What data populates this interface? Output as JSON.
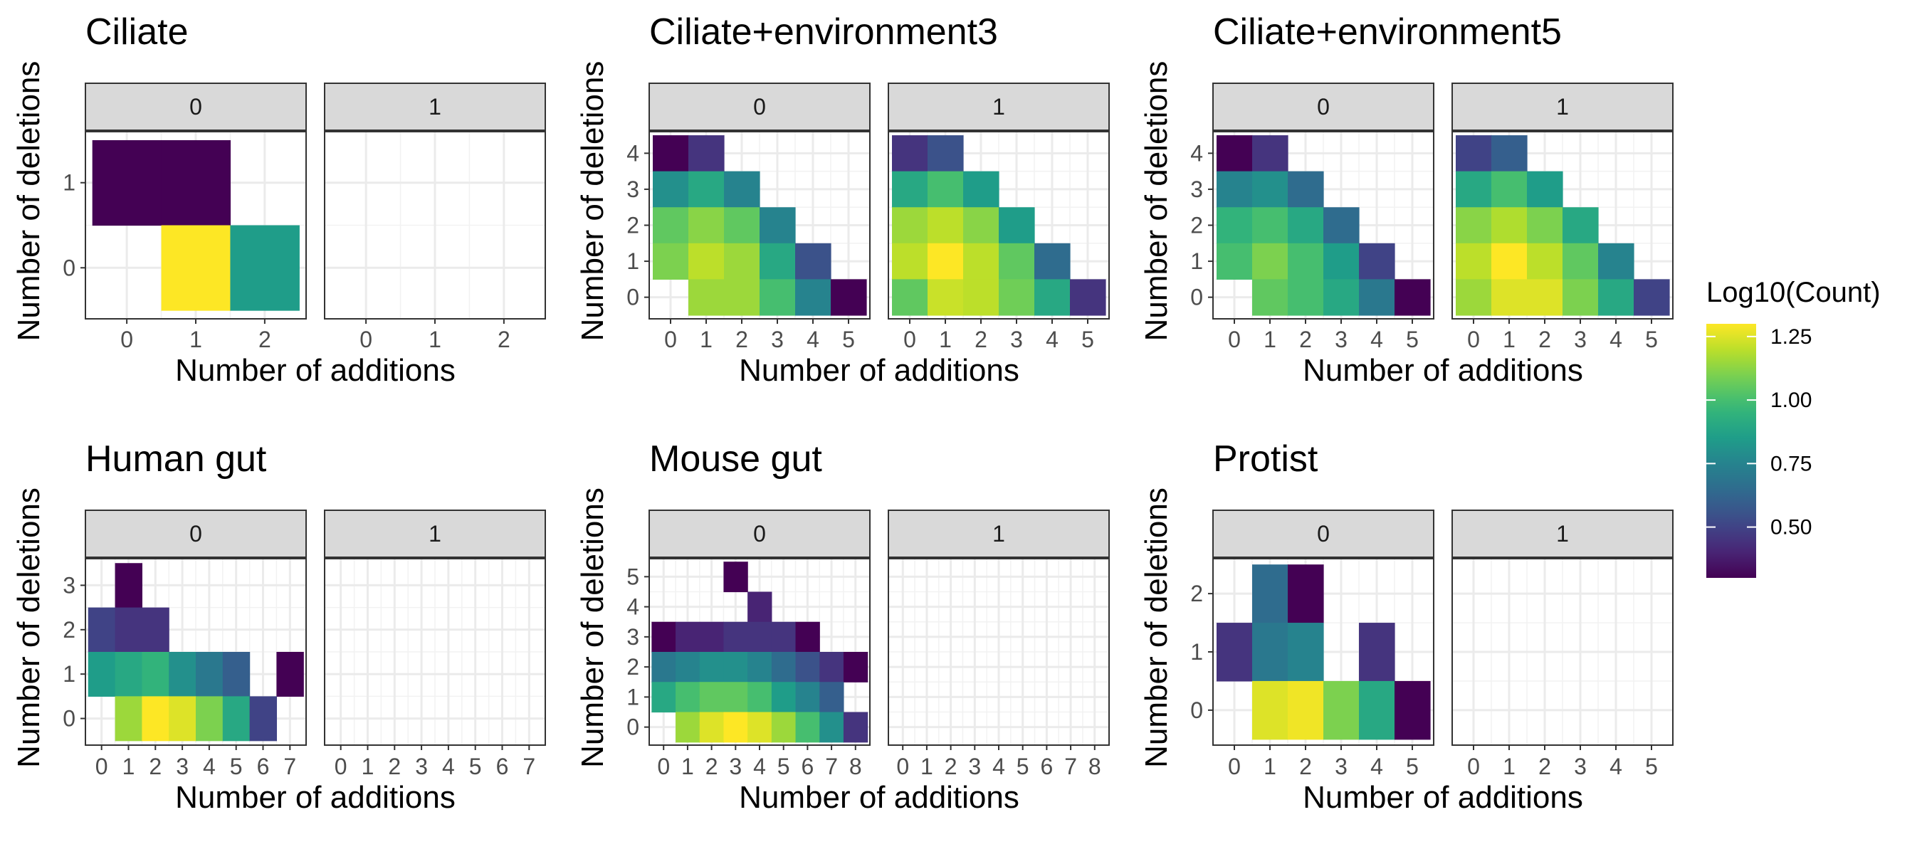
{
  "chart_data": {
    "type": "heatmap",
    "facet_labels": [
      "0",
      "1"
    ],
    "xlabel": "Number of additions",
    "ylabel": "Number of deletions",
    "legend": {
      "title": "Log10(Count)",
      "ticks": [
        "0.50",
        "0.75",
        "1.00",
        "1.25"
      ],
      "tick_values": [
        0.5,
        0.75,
        1.0,
        1.25
      ],
      "range": [
        0.3,
        1.3
      ],
      "colormap": "viridis",
      "position": "right"
    },
    "panels": [
      {
        "title": "Ciliate",
        "x_ticks": [
          "0",
          "1",
          "2"
        ],
        "y_ticks": [
          "0",
          "1"
        ],
        "facets": [
          {
            "label": "0",
            "cells": [
              {
                "x": 0,
                "y": 1,
                "v": 0.3
              },
              {
                "x": 1,
                "y": 1,
                "v": 0.3
              },
              {
                "x": 1,
                "y": 0,
                "v": 1.3
              },
              {
                "x": 2,
                "y": 0,
                "v": 0.85
              }
            ]
          },
          {
            "label": "1",
            "cells": []
          }
        ]
      },
      {
        "title": "Ciliate+environment3",
        "x_ticks": [
          "0",
          "1",
          "2",
          "3",
          "4",
          "5"
        ],
        "y_ticks": [
          "0",
          "1",
          "2",
          "3",
          "4"
        ],
        "facets": [
          {
            "label": "0",
            "cells": [
              {
                "x": 0,
                "y": 4,
                "v": 0.3
              },
              {
                "x": 1,
                "y": 4,
                "v": 0.45
              },
              {
                "x": 0,
                "y": 3,
                "v": 0.8
              },
              {
                "x": 1,
                "y": 3,
                "v": 0.9
              },
              {
                "x": 2,
                "y": 3,
                "v": 0.75
              },
              {
                "x": 0,
                "y": 2,
                "v": 1.05
              },
              {
                "x": 1,
                "y": 2,
                "v": 1.12
              },
              {
                "x": 2,
                "y": 2,
                "v": 1.05
              },
              {
                "x": 3,
                "y": 2,
                "v": 0.75
              },
              {
                "x": 0,
                "y": 1,
                "v": 1.1
              },
              {
                "x": 1,
                "y": 1,
                "v": 1.2
              },
              {
                "x": 2,
                "y": 1,
                "v": 1.15
              },
              {
                "x": 3,
                "y": 1,
                "v": 0.9
              },
              {
                "x": 4,
                "y": 1,
                "v": 0.55
              },
              {
                "x": 1,
                "y": 0,
                "v": 1.15
              },
              {
                "x": 2,
                "y": 0,
                "v": 1.15
              },
              {
                "x": 3,
                "y": 0,
                "v": 1.0
              },
              {
                "x": 4,
                "y": 0,
                "v": 0.75
              },
              {
                "x": 5,
                "y": 0,
                "v": 0.3
              }
            ]
          },
          {
            "label": "1",
            "cells": [
              {
                "x": 0,
                "y": 4,
                "v": 0.45
              },
              {
                "x": 1,
                "y": 4,
                "v": 0.55
              },
              {
                "x": 0,
                "y": 3,
                "v": 0.9
              },
              {
                "x": 1,
                "y": 3,
                "v": 1.0
              },
              {
                "x": 2,
                "y": 3,
                "v": 0.85
              },
              {
                "x": 0,
                "y": 2,
                "v": 1.15
              },
              {
                "x": 1,
                "y": 2,
                "v": 1.2
              },
              {
                "x": 2,
                "y": 2,
                "v": 1.12
              },
              {
                "x": 3,
                "y": 2,
                "v": 0.85
              },
              {
                "x": 0,
                "y": 1,
                "v": 1.2
              },
              {
                "x": 1,
                "y": 1,
                "v": 1.3
              },
              {
                "x": 2,
                "y": 1,
                "v": 1.2
              },
              {
                "x": 3,
                "y": 1,
                "v": 1.05
              },
              {
                "x": 4,
                "y": 1,
                "v": 0.65
              },
              {
                "x": 0,
                "y": 0,
                "v": 1.05
              },
              {
                "x": 1,
                "y": 0,
                "v": 1.22
              },
              {
                "x": 2,
                "y": 0,
                "v": 1.2
              },
              {
                "x": 3,
                "y": 0,
                "v": 1.08
              },
              {
                "x": 4,
                "y": 0,
                "v": 0.9
              },
              {
                "x": 5,
                "y": 0,
                "v": 0.45
              }
            ]
          }
        ]
      },
      {
        "title": "Ciliate+environment5",
        "x_ticks": [
          "0",
          "1",
          "2",
          "3",
          "4",
          "5"
        ],
        "y_ticks": [
          "0",
          "1",
          "2",
          "3",
          "4"
        ],
        "facets": [
          {
            "label": "0",
            "cells": [
              {
                "x": 0,
                "y": 4,
                "v": 0.3
              },
              {
                "x": 1,
                "y": 4,
                "v": 0.45
              },
              {
                "x": 0,
                "y": 3,
                "v": 0.75
              },
              {
                "x": 1,
                "y": 3,
                "v": 0.8
              },
              {
                "x": 2,
                "y": 3,
                "v": 0.65
              },
              {
                "x": 0,
                "y": 2,
                "v": 0.95
              },
              {
                "x": 1,
                "y": 2,
                "v": 1.0
              },
              {
                "x": 2,
                "y": 2,
                "v": 0.9
              },
              {
                "x": 3,
                "y": 2,
                "v": 0.65
              },
              {
                "x": 0,
                "y": 1,
                "v": 1.0
              },
              {
                "x": 1,
                "y": 1,
                "v": 1.1
              },
              {
                "x": 2,
                "y": 1,
                "v": 1.0
              },
              {
                "x": 3,
                "y": 1,
                "v": 0.85
              },
              {
                "x": 4,
                "y": 1,
                "v": 0.5
              },
              {
                "x": 1,
                "y": 0,
                "v": 1.05
              },
              {
                "x": 2,
                "y": 0,
                "v": 1.0
              },
              {
                "x": 3,
                "y": 0,
                "v": 0.9
              },
              {
                "x": 4,
                "y": 0,
                "v": 0.7
              },
              {
                "x": 5,
                "y": 0,
                "v": 0.3
              }
            ]
          },
          {
            "label": "1",
            "cells": [
              {
                "x": 0,
                "y": 4,
                "v": 0.5
              },
              {
                "x": 1,
                "y": 4,
                "v": 0.6
              },
              {
                "x": 0,
                "y": 3,
                "v": 0.9
              },
              {
                "x": 1,
                "y": 3,
                "v": 1.0
              },
              {
                "x": 2,
                "y": 3,
                "v": 0.85
              },
              {
                "x": 0,
                "y": 2,
                "v": 1.12
              },
              {
                "x": 1,
                "y": 2,
                "v": 1.18
              },
              {
                "x": 2,
                "y": 2,
                "v": 1.1
              },
              {
                "x": 3,
                "y": 2,
                "v": 0.9
              },
              {
                "x": 0,
                "y": 1,
                "v": 1.2
              },
              {
                "x": 1,
                "y": 1,
                "v": 1.3
              },
              {
                "x": 2,
                "y": 1,
                "v": 1.2
              },
              {
                "x": 3,
                "y": 1,
                "v": 1.05
              },
              {
                "x": 4,
                "y": 1,
                "v": 0.75
              },
              {
                "x": 0,
                "y": 0,
                "v": 1.15
              },
              {
                "x": 1,
                "y": 0,
                "v": 1.25
              },
              {
                "x": 2,
                "y": 0,
                "v": 1.25
              },
              {
                "x": 3,
                "y": 0,
                "v": 1.1
              },
              {
                "x": 4,
                "y": 0,
                "v": 0.9
              },
              {
                "x": 5,
                "y": 0,
                "v": 0.5
              }
            ]
          }
        ]
      },
      {
        "title": "Human gut",
        "x_ticks": [
          "0",
          "1",
          "2",
          "3",
          "4",
          "5",
          "6",
          "7"
        ],
        "y_ticks": [
          "0",
          "1",
          "2",
          "3"
        ],
        "facets": [
          {
            "label": "0",
            "cells": [
              {
                "x": 1,
                "y": 3,
                "v": 0.3
              },
              {
                "x": 0,
                "y": 2,
                "v": 0.5
              },
              {
                "x": 1,
                "y": 2,
                "v": 0.45
              },
              {
                "x": 2,
                "y": 2,
                "v": 0.45
              },
              {
                "x": 0,
                "y": 1,
                "v": 0.85
              },
              {
                "x": 1,
                "y": 1,
                "v": 0.9
              },
              {
                "x": 2,
                "y": 1,
                "v": 0.95
              },
              {
                "x": 3,
                "y": 1,
                "v": 0.8
              },
              {
                "x": 4,
                "y": 1,
                "v": 0.7
              },
              {
                "x": 5,
                "y": 1,
                "v": 0.6
              },
              {
                "x": 7,
                "y": 1,
                "v": 0.3
              },
              {
                "x": 1,
                "y": 0,
                "v": 1.15
              },
              {
                "x": 2,
                "y": 0,
                "v": 1.3
              },
              {
                "x": 3,
                "y": 0,
                "v": 1.25
              },
              {
                "x": 4,
                "y": 0,
                "v": 1.1
              },
              {
                "x": 5,
                "y": 0,
                "v": 0.9
              },
              {
                "x": 6,
                "y": 0,
                "v": 0.5
              }
            ]
          },
          {
            "label": "1",
            "cells": []
          }
        ]
      },
      {
        "title": "Mouse gut",
        "x_ticks": [
          "0",
          "1",
          "2",
          "3",
          "4",
          "5",
          "6",
          "7",
          "8"
        ],
        "y_ticks": [
          "0",
          "1",
          "2",
          "3",
          "4",
          "5"
        ],
        "facets": [
          {
            "label": "0",
            "cells": [
              {
                "x": 3,
                "y": 5,
                "v": 0.3
              },
              {
                "x": 4,
                "y": 4,
                "v": 0.4
              },
              {
                "x": 0,
                "y": 3,
                "v": 0.3
              },
              {
                "x": 1,
                "y": 3,
                "v": 0.4
              },
              {
                "x": 2,
                "y": 3,
                "v": 0.4
              },
              {
                "x": 3,
                "y": 3,
                "v": 0.45
              },
              {
                "x": 4,
                "y": 3,
                "v": 0.45
              },
              {
                "x": 5,
                "y": 3,
                "v": 0.45
              },
              {
                "x": 6,
                "y": 3,
                "v": 0.3
              },
              {
                "x": 0,
                "y": 2,
                "v": 0.7
              },
              {
                "x": 1,
                "y": 2,
                "v": 0.75
              },
              {
                "x": 2,
                "y": 2,
                "v": 0.8
              },
              {
                "x": 3,
                "y": 2,
                "v": 0.8
              },
              {
                "x": 4,
                "y": 2,
                "v": 0.75
              },
              {
                "x": 5,
                "y": 2,
                "v": 0.65
              },
              {
                "x": 6,
                "y": 2,
                "v": 0.55
              },
              {
                "x": 7,
                "y": 2,
                "v": 0.45
              },
              {
                "x": 8,
                "y": 2,
                "v": 0.3
              },
              {
                "x": 0,
                "y": 1,
                "v": 0.9
              },
              {
                "x": 1,
                "y": 1,
                "v": 1.0
              },
              {
                "x": 2,
                "y": 1,
                "v": 1.05
              },
              {
                "x": 3,
                "y": 1,
                "v": 1.05
              },
              {
                "x": 4,
                "y": 1,
                "v": 1.0
              },
              {
                "x": 5,
                "y": 1,
                "v": 0.85
              },
              {
                "x": 6,
                "y": 1,
                "v": 0.75
              },
              {
                "x": 7,
                "y": 1,
                "v": 0.6
              },
              {
                "x": 1,
                "y": 0,
                "v": 1.15
              },
              {
                "x": 2,
                "y": 0,
                "v": 1.25
              },
              {
                "x": 3,
                "y": 0,
                "v": 1.3
              },
              {
                "x": 4,
                "y": 0,
                "v": 1.25
              },
              {
                "x": 5,
                "y": 0,
                "v": 1.15
              },
              {
                "x": 6,
                "y": 0,
                "v": 1.0
              },
              {
                "x": 7,
                "y": 0,
                "v": 0.8
              },
              {
                "x": 8,
                "y": 0,
                "v": 0.45
              }
            ]
          },
          {
            "label": "1",
            "cells": []
          }
        ]
      },
      {
        "title": "Protist",
        "x_ticks": [
          "0",
          "1",
          "2",
          "3",
          "4",
          "5"
        ],
        "y_ticks": [
          "0",
          "1",
          "2"
        ],
        "facets": [
          {
            "label": "0",
            "cells": [
              {
                "x": 1,
                "y": 2,
                "v": 0.65
              },
              {
                "x": 2,
                "y": 2,
                "v": 0.3
              },
              {
                "x": 0,
                "y": 1,
                "v": 0.45
              },
              {
                "x": 1,
                "y": 1,
                "v": 0.7
              },
              {
                "x": 2,
                "y": 1,
                "v": 0.75
              },
              {
                "x": 4,
                "y": 1,
                "v": 0.45
              },
              {
                "x": 1,
                "y": 0,
                "v": 1.25
              },
              {
                "x": 2,
                "y": 0,
                "v": 1.28
              },
              {
                "x": 3,
                "y": 0,
                "v": 1.1
              },
              {
                "x": 4,
                "y": 0,
                "v": 0.9
              },
              {
                "x": 5,
                "y": 0,
                "v": 0.3
              }
            ]
          },
          {
            "label": "1",
            "cells": []
          }
        ]
      }
    ]
  }
}
